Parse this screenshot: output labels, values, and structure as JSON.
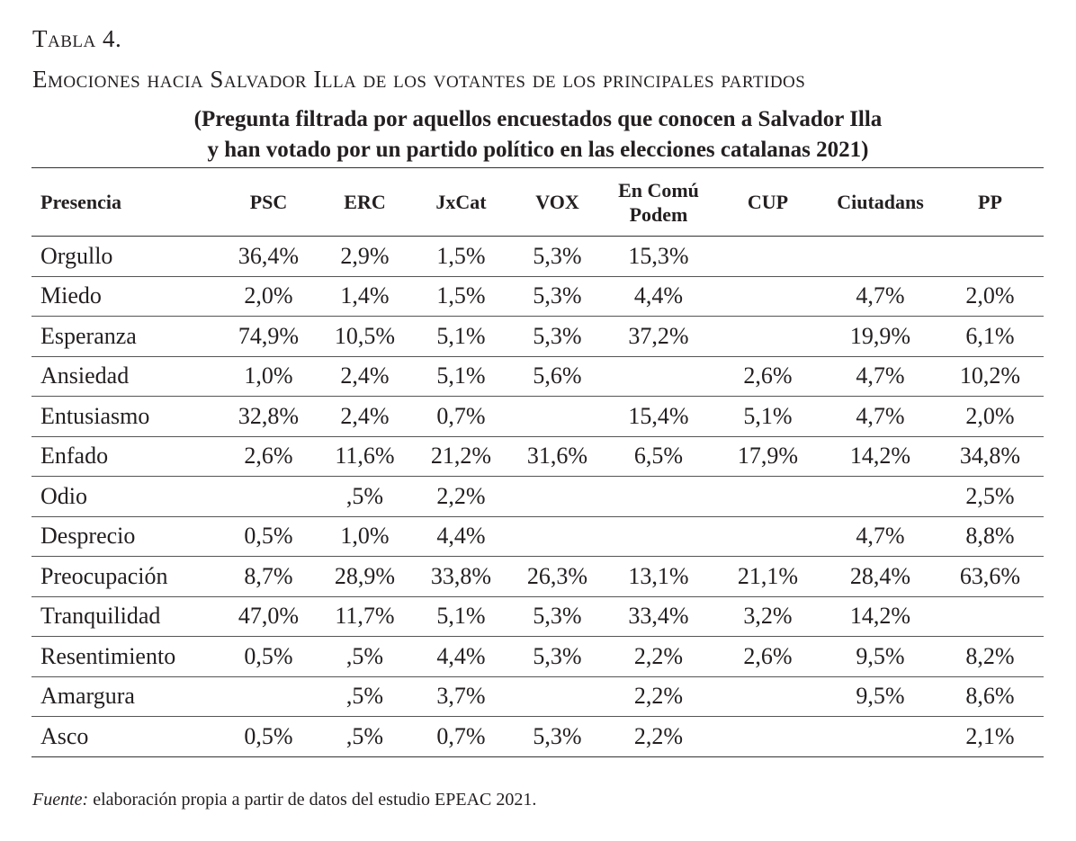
{
  "table_label": "Tabla 4.",
  "title": "Emociones hacia Salvador Illa de los votantes de los principales partidos",
  "subtitle_line1": "(Pregunta filtrada por aquellos encuestados que conocen a Salvador Illa",
  "subtitle_line2": "y han votado por un partido político en las elecciones catalanas 2021)",
  "columns": [
    "Presencia",
    "PSC",
    "ERC",
    "JxCat",
    "VOX",
    "En Comú Podem",
    "CUP",
    "Ciutadans",
    "PP"
  ],
  "rows": [
    [
      "Orgullo",
      "36,4%",
      "2,9%",
      "1,5%",
      "5,3%",
      "15,3%",
      "",
      "",
      ""
    ],
    [
      "Miedo",
      "2,0%",
      "1,4%",
      "1,5%",
      "5,3%",
      "4,4%",
      "",
      "4,7%",
      "2,0%"
    ],
    [
      "Esperanza",
      "74,9%",
      "10,5%",
      "5,1%",
      "5,3%",
      "37,2%",
      "",
      "19,9%",
      "6,1%"
    ],
    [
      "Ansiedad",
      "1,0%",
      "2,4%",
      "5,1%",
      "5,6%",
      "",
      "2,6%",
      "4,7%",
      "10,2%"
    ],
    [
      "Entusiasmo",
      "32,8%",
      "2,4%",
      "0,7%",
      "",
      "15,4%",
      "5,1%",
      "4,7%",
      "2,0%"
    ],
    [
      "Enfado",
      "2,6%",
      "11,6%",
      "21,2%",
      "31,6%",
      "6,5%",
      "17,9%",
      "14,2%",
      "34,8%"
    ],
    [
      "Odio",
      "",
      ",5%",
      "2,2%",
      "",
      "",
      "",
      "",
      "2,5%"
    ],
    [
      "Desprecio",
      "0,5%",
      "1,0%",
      "4,4%",
      "",
      "",
      "",
      "4,7%",
      "8,8%"
    ],
    [
      "Preocupación",
      "8,7%",
      "28,9%",
      "33,8%",
      "26,3%",
      "13,1%",
      "21,1%",
      "28,4%",
      "63,6%"
    ],
    [
      "Tranquilidad",
      "47,0%",
      "11,7%",
      "5,1%",
      "5,3%",
      "33,4%",
      "3,2%",
      "14,2%",
      ""
    ],
    [
      "Resentimiento",
      "0,5%",
      ",5%",
      "4,4%",
      "5,3%",
      "2,2%",
      "2,6%",
      "9,5%",
      "8,2%"
    ],
    [
      "Amargura",
      "",
      ",5%",
      "3,7%",
      "",
      "2,2%",
      "",
      "9,5%",
      "8,6%"
    ],
    [
      "Asco",
      "0,5%",
      ",5%",
      "0,7%",
      "5,3%",
      "2,2%",
      "",
      "",
      "2,1%"
    ]
  ],
  "source_label": "Fuente:",
  "source_text": " elaboración propia a partir de datos del estudio EPEAC 2021."
}
